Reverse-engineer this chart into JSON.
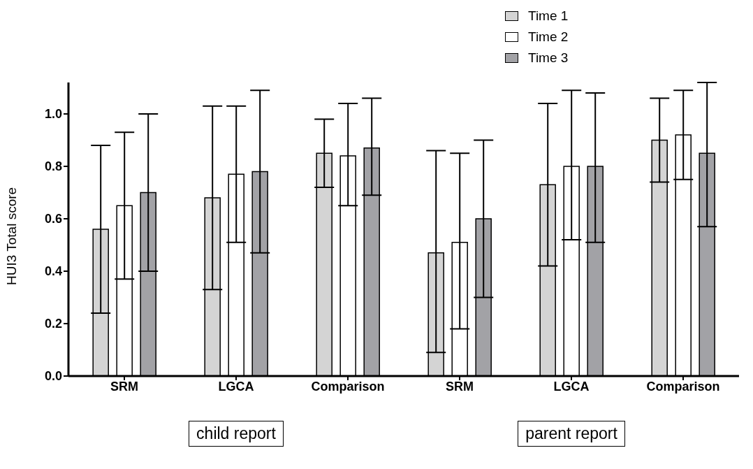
{
  "chart_data": {
    "type": "bar",
    "ylabel": "HUI3 Total score",
    "categories": [
      "SRM",
      "LGCA",
      "Comparison",
      "SRM",
      "LGCA",
      "Comparison"
    ],
    "series": [
      {
        "name": "Time 1",
        "color": "#d4d4d4",
        "values": [
          0.56,
          0.68,
          0.85,
          0.47,
          0.73,
          0.9
        ],
        "errors": [
          [
            0.24,
            0.88
          ],
          [
            0.33,
            1.03
          ],
          [
            0.72,
            0.98
          ],
          [
            0.09,
            0.86
          ],
          [
            0.42,
            1.04
          ],
          [
            0.74,
            1.06
          ]
        ]
      },
      {
        "name": "Time 2",
        "color": "#ffffff",
        "values": [
          0.65,
          0.77,
          0.84,
          0.51,
          0.8,
          0.92
        ],
        "errors": [
          [
            0.37,
            0.93
          ],
          [
            0.51,
            1.03
          ],
          [
            0.65,
            1.04
          ],
          [
            0.18,
            0.85
          ],
          [
            0.52,
            1.09
          ],
          [
            0.75,
            1.09
          ]
        ]
      },
      {
        "name": "Time 3",
        "color": "#a2a2a6",
        "values": [
          0.7,
          0.78,
          0.87,
          0.6,
          0.8,
          0.85
        ],
        "errors": [
          [
            0.4,
            1.0
          ],
          [
            0.47,
            1.09
          ],
          [
            0.69,
            1.06
          ],
          [
            0.3,
            0.9
          ],
          [
            0.51,
            1.08
          ],
          [
            0.57,
            1.12
          ]
        ]
      }
    ],
    "ylim": [
      0,
      1.12
    ],
    "yticks": [
      {
        "value": 0,
        "label": "0.0"
      },
      {
        "value": 0.2,
        "label": "0.2"
      },
      {
        "value": 0.4,
        "label": "0.4"
      },
      {
        "value": 0.6,
        "label": "0.6"
      },
      {
        "value": 0.8,
        "label": "0.8"
      },
      {
        "value": 1,
        "label": "1.0"
      }
    ],
    "legend": "top right",
    "grid": false,
    "annotations": [
      "child report",
      "parent report"
    ]
  }
}
